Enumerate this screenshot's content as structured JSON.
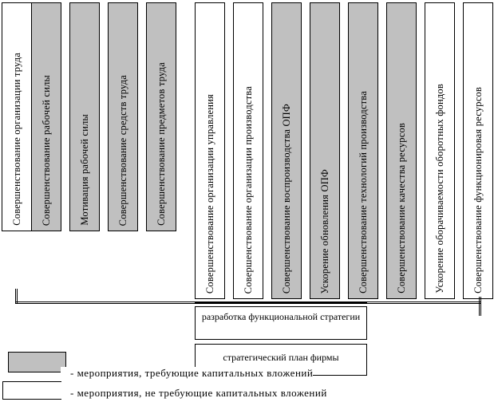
{
  "left_group": [
    {
      "label": "Совершенствование организации труда",
      "capital": false
    },
    {
      "label": "Совершенствование рабочей силы",
      "capital": true
    },
    {
      "label": "Мотивация рабочей силы",
      "capital": true
    },
    {
      "label": "Совершенствование средств труда",
      "capital": true
    },
    {
      "label": "Совершенствование предметов труда",
      "capital": true
    }
  ],
  "right_group": [
    {
      "label": "Совершенствование организации управления",
      "capital": false
    },
    {
      "label": "Совершенствование организации производства",
      "capital": false
    },
    {
      "label": "Совершенствование воспроизводства ОПФ",
      "capital": true
    },
    {
      "label": "Ускорение обновления ОПФ",
      "capital": true
    },
    {
      "label": "Совершенствование технологий производства",
      "capital": true
    },
    {
      "label": "Совершенствование качества ресурсов",
      "capital": true
    },
    {
      "label": "Ускорение оборачиваемости оборотных фондов",
      "capital": false
    },
    {
      "label": "Совершенствование функционировая ресурсов",
      "capital": false
    }
  ],
  "strategy_box": "разработка функциональной стратегии",
  "plan_box": "стратегический план фирмы",
  "legend": {
    "capital": "- мероприятия, требующие капитальных вложений",
    "no_capital": "- мероприятия, не требующие капитальных вложений"
  },
  "colors": {
    "capital_fill": "#c0c0c0",
    "no_capital_fill": "#ffffff"
  }
}
